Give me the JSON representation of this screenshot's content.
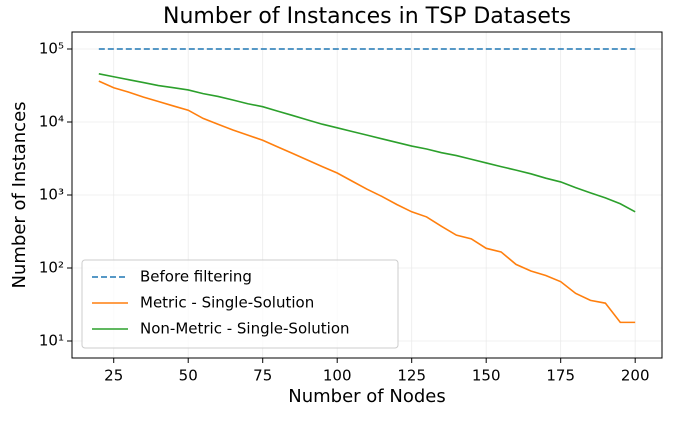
{
  "chart_data": {
    "type": "line",
    "title": "Number of Instances in TSP Datasets",
    "xlabel": "Number of Nodes",
    "ylabel": "Number of Instances",
    "x": [
      20,
      25,
      30,
      35,
      40,
      45,
      50,
      55,
      60,
      65,
      70,
      75,
      80,
      85,
      90,
      95,
      100,
      105,
      110,
      115,
      120,
      125,
      130,
      135,
      140,
      145,
      150,
      155,
      160,
      165,
      170,
      175,
      180,
      185,
      190,
      195,
      200
    ],
    "series": [
      {
        "name": "Before filtering",
        "color": "#1f77b4",
        "dashed": true,
        "values": [
          100000,
          100000,
          100000,
          100000,
          100000,
          100000,
          100000,
          100000,
          100000,
          100000,
          100000,
          100000,
          100000,
          100000,
          100000,
          100000,
          100000,
          100000,
          100000,
          100000,
          100000,
          100000,
          100000,
          100000,
          100000,
          100000,
          100000,
          100000,
          100000,
          100000,
          100000,
          100000,
          100000,
          100000,
          100000,
          100000,
          100000
        ]
      },
      {
        "name": "Metric - Single-Solution",
        "color": "#ff7f0e",
        "values": [
          36300,
          29500,
          25700,
          21900,
          19100,
          16600,
          14500,
          11200,
          9330,
          7760,
          6610,
          5620,
          4570,
          3720,
          3020,
          2450,
          2000,
          1550,
          1200,
          955,
          741,
          589,
          501,
          372,
          282,
          251,
          186,
          166,
          112,
          91,
          79,
          65,
          45,
          36,
          33,
          18,
          18
        ]
      },
      {
        "name": "Non-Metric - Single-Solution",
        "color": "#2ca02c",
        "values": [
          45700,
          41700,
          38000,
          34700,
          31600,
          29500,
          27500,
          24500,
          22400,
          20000,
          17800,
          16200,
          14100,
          12300,
          10700,
          9330,
          8320,
          7410,
          6610,
          5890,
          5250,
          4680,
          4270,
          3800,
          3470,
          3090,
          2750,
          2450,
          2190,
          1950,
          1700,
          1510,
          1260,
          1070,
          912,
          759,
          589
        ]
      }
    ],
    "xlim": [
      11,
      209
    ],
    "xticks": [
      25,
      50,
      75,
      100,
      125,
      150,
      175,
      200
    ],
    "ylim": [
      5.85,
      171000
    ],
    "ylog": true,
    "yticks": [
      {
        "value": 10,
        "label": "10¹"
      },
      {
        "value": 100,
        "label": "10²"
      },
      {
        "value": 1000,
        "label": "10³"
      },
      {
        "value": 10000,
        "label": "10⁴"
      },
      {
        "value": 100000,
        "label": "10⁵"
      }
    ],
    "grid": true,
    "legend": "lower left"
  }
}
